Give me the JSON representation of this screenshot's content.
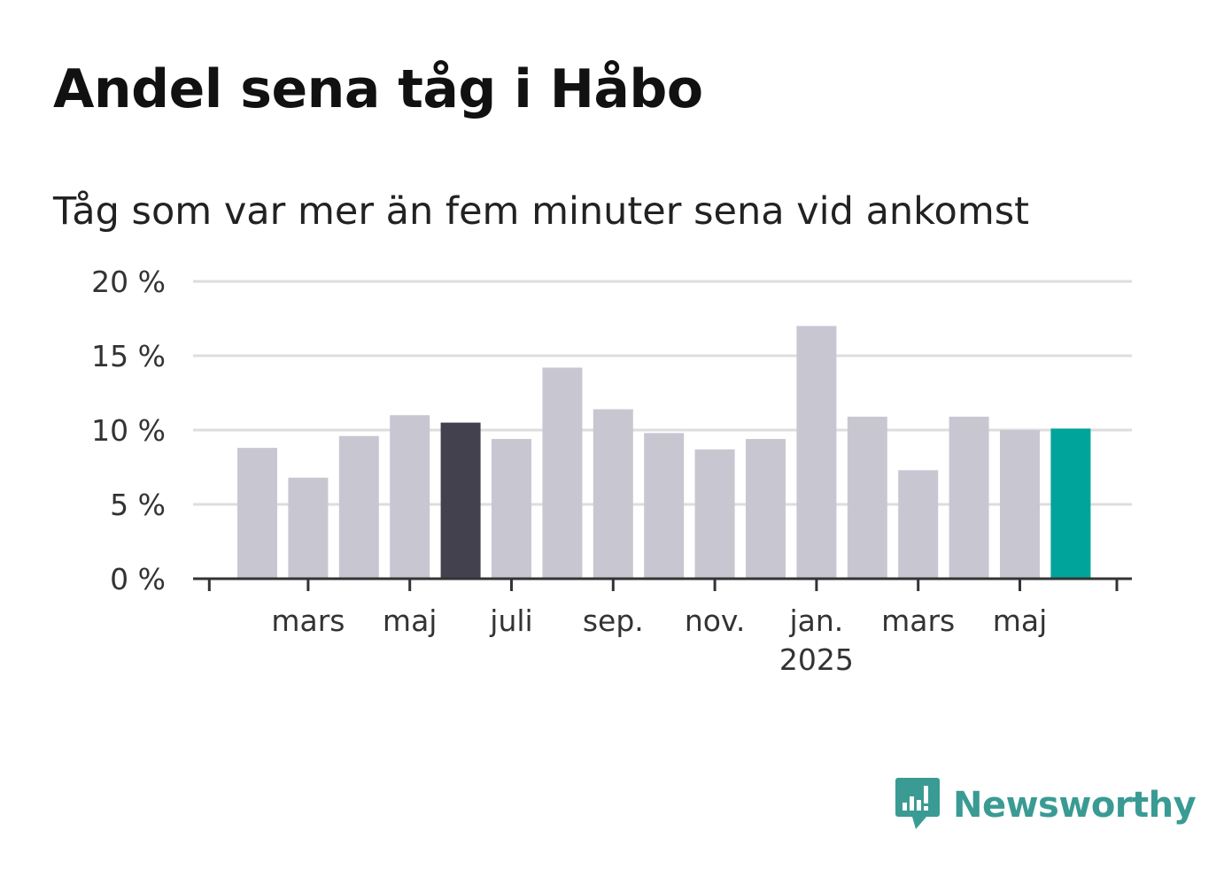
{
  "title": "Andel sena tåg i Håbo",
  "subtitle": "Tåg som var mer än fem minuter sena vid ankomst",
  "brand": {
    "name": "Newsworthy",
    "logo_icon": "newsworthy-bar-chart-icon",
    "color": "#3a9b94"
  },
  "colors": {
    "default_bar": "#c8c7d1",
    "highlight_bar": "#42414d",
    "latest_bar": "#00a49a",
    "grid": "#dddddd",
    "axis": "#333333"
  },
  "chart_data": {
    "type": "bar",
    "title": "Andel sena tåg i Håbo",
    "subtitle": "Tåg som var mer än fem minuter sena vid ankomst",
    "xlabel": "",
    "ylabel": "",
    "categories": [
      "2024-02",
      "2024-03",
      "2024-04",
      "2024-05",
      "2024-06",
      "2024-07",
      "2024-08",
      "2024-09",
      "2024-10",
      "2024-11",
      "2024-12",
      "2025-01",
      "2025-02",
      "2025-03",
      "2025-04",
      "2025-05",
      "2025-06"
    ],
    "values": [
      8.8,
      6.8,
      9.6,
      11.0,
      10.5,
      9.4,
      14.2,
      11.4,
      9.8,
      8.7,
      9.4,
      17.0,
      10.9,
      7.3,
      10.9,
      10.0,
      10.1
    ],
    "highlight_index": 4,
    "latest_index": 16,
    "ylim": [
      0,
      20
    ],
    "yticks": [
      {
        "value": 0,
        "label": "0 %"
      },
      {
        "value": 5,
        "label": "5 %"
      },
      {
        "value": 10,
        "label": "10 %"
      },
      {
        "value": 15,
        "label": "15 %"
      },
      {
        "value": 20,
        "label": "20 %"
      }
    ],
    "xticks": [
      {
        "index": 1,
        "label": "mars"
      },
      {
        "index": 3,
        "label": "maj"
      },
      {
        "index": 5,
        "label": "juli"
      },
      {
        "index": 7,
        "label": "sep."
      },
      {
        "index": 9,
        "label": "nov."
      },
      {
        "index": 11,
        "label": "jan.",
        "sublabel": "2025"
      },
      {
        "index": 13,
        "label": "mars"
      },
      {
        "index": 15,
        "label": "maj"
      }
    ],
    "grid": true,
    "legend": "none"
  }
}
